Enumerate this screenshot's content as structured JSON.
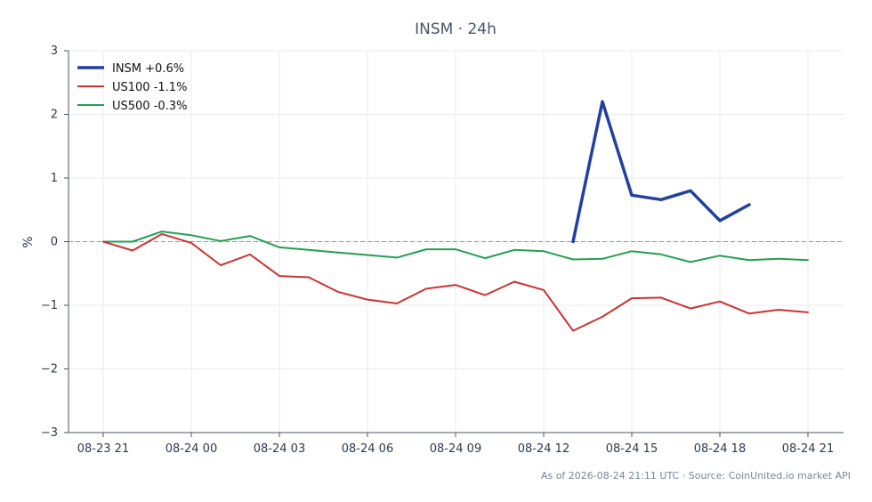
{
  "chart_data": {
    "type": "line",
    "title": "INSM · 24h",
    "xlabel": "",
    "ylabel": "%",
    "ylim": [
      -3,
      3
    ],
    "yticks": [
      -3,
      -2,
      -1,
      0,
      1,
      2,
      3
    ],
    "ytick_labels": [
      "−3",
      "−2",
      "−1",
      "0",
      "1",
      "2",
      "3"
    ],
    "x": [
      "08-23 21:00",
      "08-23 22:00",
      "08-23 23:00",
      "08-24 00:00",
      "08-24 01:00",
      "08-24 02:00",
      "08-24 03:00",
      "08-24 04:00",
      "08-24 05:00",
      "08-24 06:00",
      "08-24 07:00",
      "08-24 08:00",
      "08-24 09:00",
      "08-24 10:00",
      "08-24 11:00",
      "08-24 12:00",
      "08-24 13:00",
      "08-24 14:00",
      "08-24 15:00",
      "08-24 16:00",
      "08-24 17:00",
      "08-24 18:00",
      "08-24 19:00",
      "08-24 20:00",
      "08-24 21:00"
    ],
    "xticks": [
      "08-23 21",
      "08-24 00",
      "08-24 03",
      "08-24 06",
      "08-24 09",
      "08-24 12",
      "08-24 15",
      "08-24 18",
      "08-24 21"
    ],
    "reference_line": 0,
    "grid": true,
    "legend_position": "top-left",
    "series": [
      {
        "name": "INSM +0.6%",
        "color": "#2340a0",
        "values": [
          null,
          null,
          null,
          null,
          null,
          null,
          null,
          null,
          null,
          null,
          null,
          null,
          null,
          null,
          null,
          null,
          0.0,
          2.2,
          0.73,
          0.66,
          0.8,
          0.33,
          0.58,
          null,
          null
        ]
      },
      {
        "name": "US100 -1.1%",
        "color": "#cc3333",
        "values": [
          0.0,
          -0.14,
          0.12,
          -0.02,
          -0.37,
          -0.2,
          -0.54,
          -0.56,
          -0.79,
          -0.91,
          -0.97,
          -0.74,
          -0.68,
          -0.84,
          -0.63,
          -0.76,
          -1.4,
          -1.18,
          -0.89,
          -0.88,
          -1.05,
          -0.94,
          -1.13,
          -1.07,
          -1.11
        ]
      },
      {
        "name": "US500 -0.3%",
        "color": "#22a050",
        "values": [
          0.0,
          0.0,
          0.16,
          0.1,
          0.01,
          0.09,
          -0.09,
          -0.13,
          -0.17,
          -0.21,
          -0.25,
          -0.12,
          -0.12,
          -0.26,
          -0.13,
          -0.15,
          -0.28,
          -0.27,
          -0.15,
          -0.2,
          -0.32,
          -0.22,
          -0.29,
          -0.27,
          -0.29
        ]
      }
    ],
    "footer": "As of 2026-08-24 21:11 UTC · Source: CoinUnited.io market API"
  }
}
